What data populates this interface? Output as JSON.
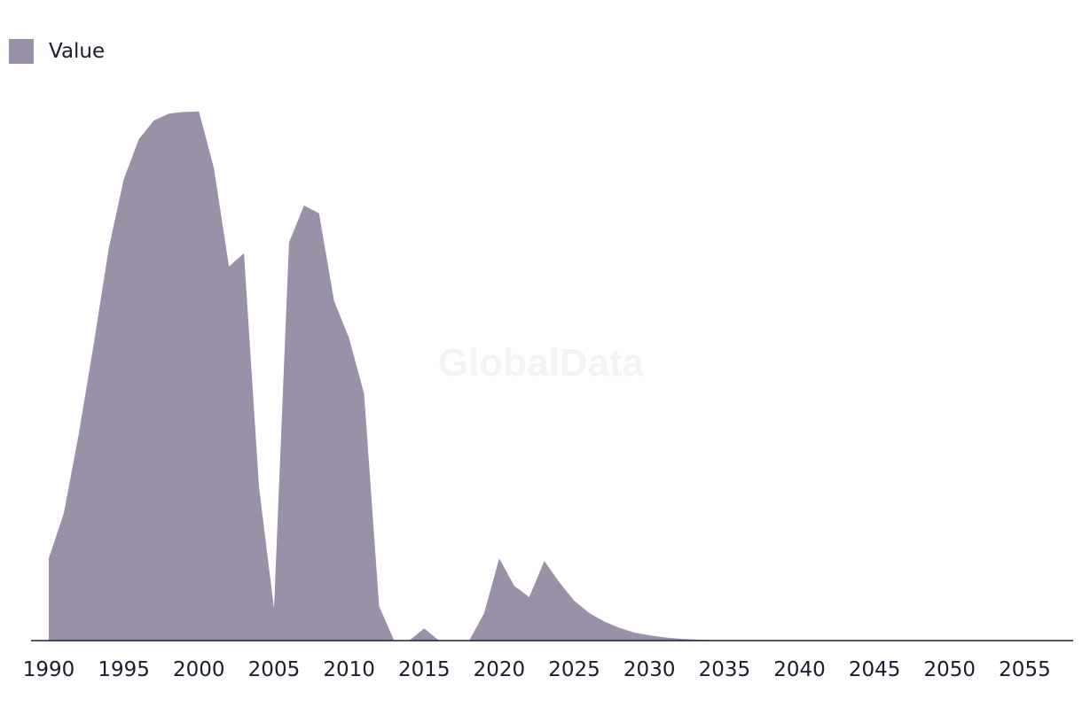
{
  "watermark": "GlobalData",
  "chart_data": {
    "type": "area",
    "legend": {
      "position": "top-left",
      "entries": [
        "Value"
      ]
    },
    "series": [
      {
        "name": "Value",
        "color": "#9a91a9",
        "x": [
          1990,
          1991,
          1992,
          1993,
          1994,
          1995,
          1996,
          1997,
          1998,
          1999,
          2000,
          2001,
          2002,
          2003,
          2004,
          2005,
          2006,
          2007,
          2008,
          2009,
          2010,
          2011,
          2012,
          2013,
          2014,
          2015,
          2016,
          2017,
          2018,
          2019,
          2020,
          2021,
          2022,
          2023,
          2024,
          2025,
          2026,
          2027,
          2028,
          2029,
          2030,
          2031,
          2032,
          2033,
          2034,
          2035,
          2036,
          2037,
          2038,
          2039,
          2040,
          2041,
          2042,
          2043,
          2044,
          2045,
          2046,
          2047,
          2048,
          2049,
          2050,
          2051,
          2052,
          2053,
          2054,
          2055,
          2056,
          2057,
          2058,
          2059
        ],
        "values": [
          15.5,
          24,
          39,
          56,
          74,
          87,
          94.5,
          98,
          99.3,
          99.6,
          99.7,
          89,
          70.5,
          73,
          29,
          6,
          75,
          82,
          80.5,
          64,
          57,
          46.5,
          6.5,
          0,
          0,
          2.3,
          0,
          0,
          0,
          5.2,
          15.5,
          10.3,
          8.2,
          15,
          11,
          7.5,
          5.2,
          3.6,
          2.4,
          1.5,
          1,
          0.6,
          0.35,
          0.2,
          0.1,
          0.05,
          0.03,
          0.02,
          0.01,
          0,
          0,
          0,
          0,
          0,
          0,
          0,
          0,
          0,
          0,
          0,
          0,
          0,
          0,
          0,
          0,
          0,
          0,
          0,
          0,
          0
        ]
      }
    ],
    "x_ticks": [
      1990,
      1995,
      2000,
      2005,
      2010,
      2015,
      2020,
      2025,
      2030,
      2035,
      2040,
      2045,
      2050,
      2055
    ],
    "xlim": [
      1990,
      2059
    ],
    "ylim": [
      0,
      100
    ],
    "y_axis_visible": false,
    "grid": false
  }
}
